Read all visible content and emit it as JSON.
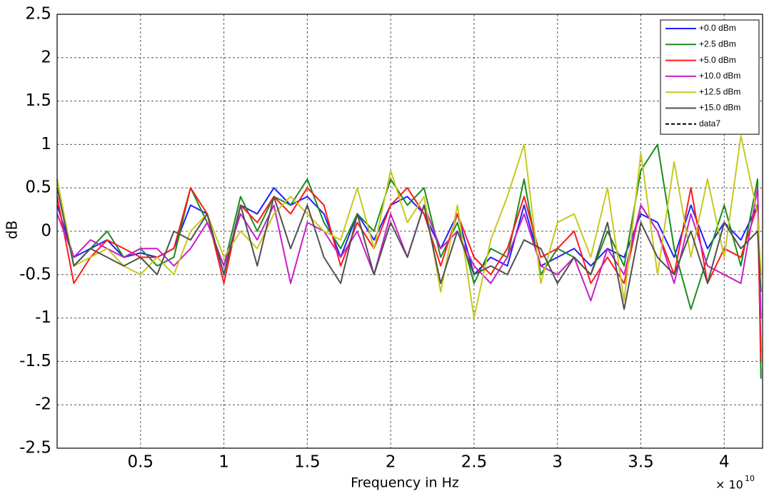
{
  "chart_data": {
    "type": "line",
    "xlabel": "Frequency in Hz",
    "ylabel": "dB",
    "x_multiplier": "× 10",
    "x_exponent": "10",
    "x": [
      0.0,
      0.1,
      0.2,
      0.3,
      0.4,
      0.5,
      0.6,
      0.7,
      0.8,
      0.9,
      1.0,
      1.1,
      1.2,
      1.3,
      1.4,
      1.5,
      1.6,
      1.7,
      1.8,
      1.9,
      2.0,
      2.1,
      2.2,
      2.3,
      2.4,
      2.5,
      2.6,
      2.7,
      2.8,
      2.9,
      3.0,
      3.1,
      3.2,
      3.3,
      3.4,
      3.5,
      3.6,
      3.7,
      3.8,
      3.9,
      4.0,
      4.1,
      4.2,
      4.22
    ],
    "series": [
      {
        "name": "+0.0 dBm",
        "color": "#1f1fff",
        "values": [
          0.3,
          -0.3,
          -0.2,
          -0.1,
          -0.3,
          -0.25,
          -0.3,
          -0.2,
          0.3,
          0.2,
          -0.5,
          0.3,
          0.2,
          0.5,
          0.3,
          0.4,
          0.2,
          -0.3,
          0.2,
          -0.1,
          0.3,
          0.4,
          0.2,
          -0.2,
          0.2,
          -0.5,
          -0.3,
          -0.4,
          0.3,
          -0.4,
          -0.3,
          -0.2,
          -0.4,
          -0.2,
          -0.3,
          0.2,
          0.1,
          -0.3,
          0.3,
          -0.2,
          0.1,
          -0.1,
          0.3,
          -1.4
        ]
      },
      {
        "name": "+2.5 dBm",
        "color": "#1a8c1a",
        "values": [
          0.6,
          -0.4,
          -0.2,
          0.0,
          -0.3,
          -0.2,
          -0.4,
          -0.3,
          0.5,
          0.1,
          -0.4,
          0.4,
          0.0,
          0.4,
          0.3,
          0.6,
          0.1,
          -0.2,
          0.2,
          0.0,
          0.6,
          0.3,
          0.5,
          -0.3,
          0.1,
          -0.6,
          -0.2,
          -0.3,
          0.6,
          -0.5,
          -0.2,
          -0.3,
          -0.5,
          0.0,
          -0.4,
          0.7,
          1.0,
          -0.2,
          -0.9,
          -0.3,
          0.3,
          -0.4,
          0.6,
          -1.7
        ]
      },
      {
        "name": "+5.0 dBm",
        "color": "#ff1a1a",
        "values": [
          0.4,
          -0.6,
          -0.3,
          -0.1,
          -0.2,
          -0.3,
          -0.3,
          -0.2,
          0.5,
          0.2,
          -0.6,
          0.3,
          0.1,
          0.4,
          0.2,
          0.5,
          0.3,
          -0.4,
          0.1,
          -0.2,
          0.3,
          0.5,
          0.2,
          -0.4,
          0.2,
          -0.3,
          -0.5,
          -0.2,
          0.4,
          -0.3,
          -0.2,
          0.0,
          -0.6,
          -0.3,
          -0.6,
          0.3,
          0.0,
          -0.5,
          0.5,
          -0.6,
          -0.2,
          -0.3,
          0.3,
          -1.5
        ]
      },
      {
        "name": "+10.0 dBm",
        "color": "#c81ec8",
        "values": [
          0.2,
          -0.3,
          -0.1,
          -0.2,
          -0.3,
          -0.2,
          -0.2,
          -0.4,
          -0.2,
          0.1,
          -0.4,
          0.2,
          -0.1,
          0.3,
          -0.6,
          0.1,
          0.0,
          -0.3,
          0.0,
          -0.5,
          0.2,
          -0.3,
          0.3,
          -0.2,
          0.0,
          -0.4,
          -0.6,
          -0.3,
          0.2,
          -0.4,
          -0.5,
          -0.3,
          -0.8,
          -0.2,
          -0.5,
          0.3,
          0.0,
          -0.6,
          0.2,
          -0.4,
          -0.5,
          -0.6,
          0.5,
          -1.0
        ]
      },
      {
        "name": "+12.5 dBm",
        "color": "#c8c81e",
        "values": [
          0.6,
          -0.4,
          -0.3,
          -0.2,
          -0.4,
          -0.5,
          -0.3,
          -0.5,
          0.0,
          0.2,
          -0.3,
          0.0,
          -0.2,
          0.2,
          0.4,
          0.2,
          0.0,
          -0.1,
          0.5,
          -0.2,
          0.7,
          0.1,
          0.4,
          -0.7,
          0.3,
          -1.0,
          -0.1,
          0.4,
          1.0,
          -0.6,
          0.1,
          0.2,
          -0.3,
          0.5,
          -0.8,
          0.9,
          -0.5,
          0.8,
          -0.3,
          0.6,
          -0.3,
          1.1,
          0.2,
          -0.5
        ]
      },
      {
        "name": "+15.0 dBm",
        "color": "#505050",
        "values": [
          0.5,
          -0.4,
          -0.2,
          -0.3,
          -0.4,
          -0.3,
          -0.5,
          0.0,
          -0.1,
          0.2,
          -0.5,
          0.3,
          -0.4,
          0.4,
          -0.2,
          0.3,
          -0.3,
          -0.6,
          0.2,
          -0.5,
          0.1,
          -0.3,
          0.3,
          -0.6,
          0.0,
          -0.5,
          -0.4,
          -0.5,
          -0.1,
          -0.2,
          -0.6,
          -0.3,
          -0.5,
          0.1,
          -0.9,
          0.1,
          -0.3,
          -0.5,
          0.0,
          -0.6,
          0.1,
          -0.2,
          0.0,
          -0.7
        ]
      },
      {
        "name": "data7",
        "color": "#000000",
        "linestyle": "dashed",
        "values": [
          null,
          null,
          null,
          null,
          null,
          null,
          null,
          null,
          null,
          null,
          null,
          null,
          null,
          null,
          null,
          null,
          null,
          null,
          null,
          null,
          null,
          null,
          null,
          null,
          null,
          null,
          null,
          null,
          null,
          null,
          null,
          null,
          null,
          null,
          null,
          null,
          null,
          null,
          null,
          null,
          null,
          null,
          null,
          null
        ]
      }
    ],
    "xlim": [
      0,
      4.23
    ],
    "xticks": [
      0.5,
      1,
      1.5,
      2,
      2.5,
      3,
      3.5,
      4
    ],
    "ylim": [
      -2.5,
      2.5
    ],
    "yticks": [
      -2.5,
      -2,
      -1.5,
      -1,
      -0.5,
      0,
      0.5,
      1,
      1.5,
      2,
      2.5
    ],
    "grid": true,
    "legend": "upper right"
  }
}
